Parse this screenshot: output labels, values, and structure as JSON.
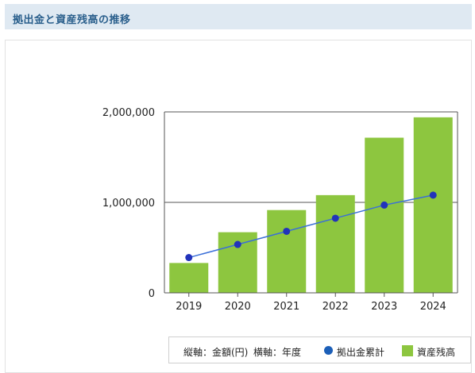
{
  "header": {
    "title": "拠出金と資産残高の推移"
  },
  "legend": {
    "vertical_axis": "縦軸：金額(円)",
    "horizontal_axis": "横軸：年度",
    "line_series_label": "拠出金累計",
    "bar_series_label": "資産残高"
  },
  "colors": {
    "bar": "#8dc63f",
    "line": "#3a6fd8",
    "marker": "#2233bb",
    "header_bg": "#dfe9f2",
    "header_text": "#2a5f8c"
  },
  "chart_data": {
    "type": "bar",
    "categories": [
      "2019",
      "2020",
      "2021",
      "2022",
      "2023",
      "2024"
    ],
    "series": [
      {
        "name": "資産残高",
        "kind": "bar",
        "values": [
          330000,
          670000,
          915000,
          1080000,
          1715000,
          1940000
        ]
      },
      {
        "name": "拠出金累計",
        "kind": "line",
        "values": [
          390000,
          535000,
          680000,
          825000,
          970000,
          1080000
        ]
      }
    ],
    "ylim": [
      0,
      2000000
    ],
    "yticks": [
      0,
      1000000,
      2000000
    ],
    "ytick_labels": [
      "0",
      "1,000,000",
      "2,000,000"
    ],
    "grid": true,
    "legend_position": "bottom-right"
  }
}
